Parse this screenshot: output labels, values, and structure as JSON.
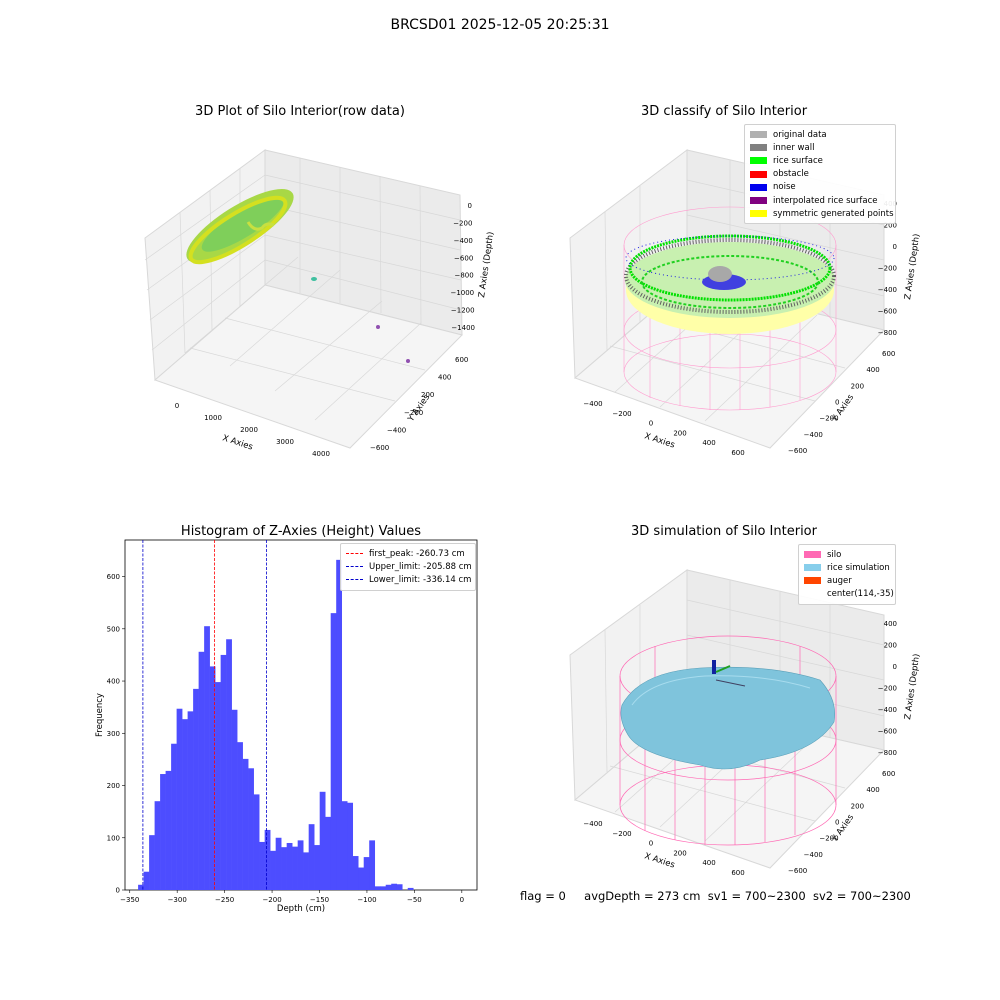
{
  "figure_title": "BRCSD01 2025-12-05 20:25:31",
  "panels": {
    "raw": {
      "title": "3D Plot of Silo Interior(row data)",
      "xlabel": "X Axies",
      "ylabel": "Y Axies",
      "zlabel": "Z Axies (Depth)",
      "xticks": [
        "0",
        "1000",
        "2000",
        "3000",
        "4000"
      ],
      "yticks": [
        "600",
        "400",
        "200",
        "−200",
        "−400",
        "−600"
      ],
      "zticks": [
        "0",
        "−200",
        "−400",
        "−600",
        "−800",
        "−1000",
        "−1200",
        "−1400"
      ]
    },
    "classify": {
      "title": "3D classify of Silo Interior",
      "xlabel": "X Axies",
      "ylabel": "Y Axies",
      "zlabel": "Z Axies (Depth)",
      "xticks": [
        "−400",
        "−200",
        "0",
        "200",
        "400",
        "600"
      ],
      "yticks": [
        "600",
        "400",
        "200",
        "0",
        "−200",
        "−400",
        "−600"
      ],
      "zticks": [
        "400",
        "200",
        "0",
        "−200",
        "−400",
        "−600",
        "−800"
      ],
      "legend": [
        {
          "label": "original data",
          "color": "#b0b0b0"
        },
        {
          "label": "inner wall",
          "color": "#808080"
        },
        {
          "label": "rice surface",
          "color": "#00ff00"
        },
        {
          "label": "obstacle",
          "color": "#ff0000"
        },
        {
          "label": "noise",
          "color": "#0000ee"
        },
        {
          "label": "interpolated rice surface",
          "color": "#800080"
        },
        {
          "label": "symmetric generated points",
          "color": "#ffff00"
        }
      ]
    },
    "simulation": {
      "title": "3D simulation of Silo Interior",
      "xlabel": "X Axies",
      "ylabel": "Y Axies",
      "zlabel": "Z Axies (Depth)",
      "xticks": [
        "−400",
        "−200",
        "0",
        "200",
        "400",
        "600"
      ],
      "yticks": [
        "600",
        "400",
        "200",
        "0",
        "−200",
        "−400",
        "−600"
      ],
      "zticks": [
        "400",
        "200",
        "0",
        "−200",
        "−400",
        "−600",
        "−800"
      ],
      "legend": [
        {
          "label": "silo",
          "color": "#ff69b4"
        },
        {
          "label": "rice simulation",
          "color": "#87ceeb"
        },
        {
          "label": "auger",
          "color": "#ff4500"
        },
        {
          "label": "center(114,-35)",
          "color": ""
        }
      ]
    }
  },
  "chart_data": {
    "type": "bar",
    "title": "Histogram of Z-Axies (Height) Values",
    "xlabel": "Depth (cm)",
    "ylabel": "Frequency",
    "bar_color": "#4d4dff",
    "xlim": [
      -355,
      16
    ],
    "ylim": [
      0,
      670
    ],
    "xticks": [
      -350,
      -300,
      -250,
      -200,
      -150,
      -100,
      -50,
      0
    ],
    "yticks": [
      0,
      100,
      200,
      300,
      400,
      500,
      600
    ],
    "bin_width": 5.8,
    "bin_start": -341.2,
    "values": [
      10,
      35,
      105,
      170,
      222,
      228,
      280,
      347,
      327,
      342,
      385,
      456,
      505,
      428,
      398,
      450,
      480,
      345,
      283,
      251,
      233,
      183,
      92,
      115,
      75,
      100,
      82,
      90,
      83,
      95,
      72,
      126,
      86,
      188,
      140,
      530,
      632,
      170,
      167,
      65,
      43,
      63,
      95,
      7,
      7,
      10,
      12,
      11,
      0,
      4,
      0
    ],
    "vlines": [
      {
        "label": "first_peak: -260.73 cm",
        "x": -260.73,
        "color": "#ff0000"
      },
      {
        "label": "Upper_limit: -205.88 cm",
        "x": -205.88,
        "color": "#0000cc"
      },
      {
        "label": "Lower_limit: -336.14 cm",
        "x": -336.14,
        "color": "#0000cc"
      }
    ],
    "legend_position": "top-right"
  },
  "footer": {
    "flag": "flag = 0",
    "avg_depth": "avgDepth = 273 cm",
    "sv1": "sv1 = 700~2300",
    "sv2": "sv2 = 700~2300"
  }
}
